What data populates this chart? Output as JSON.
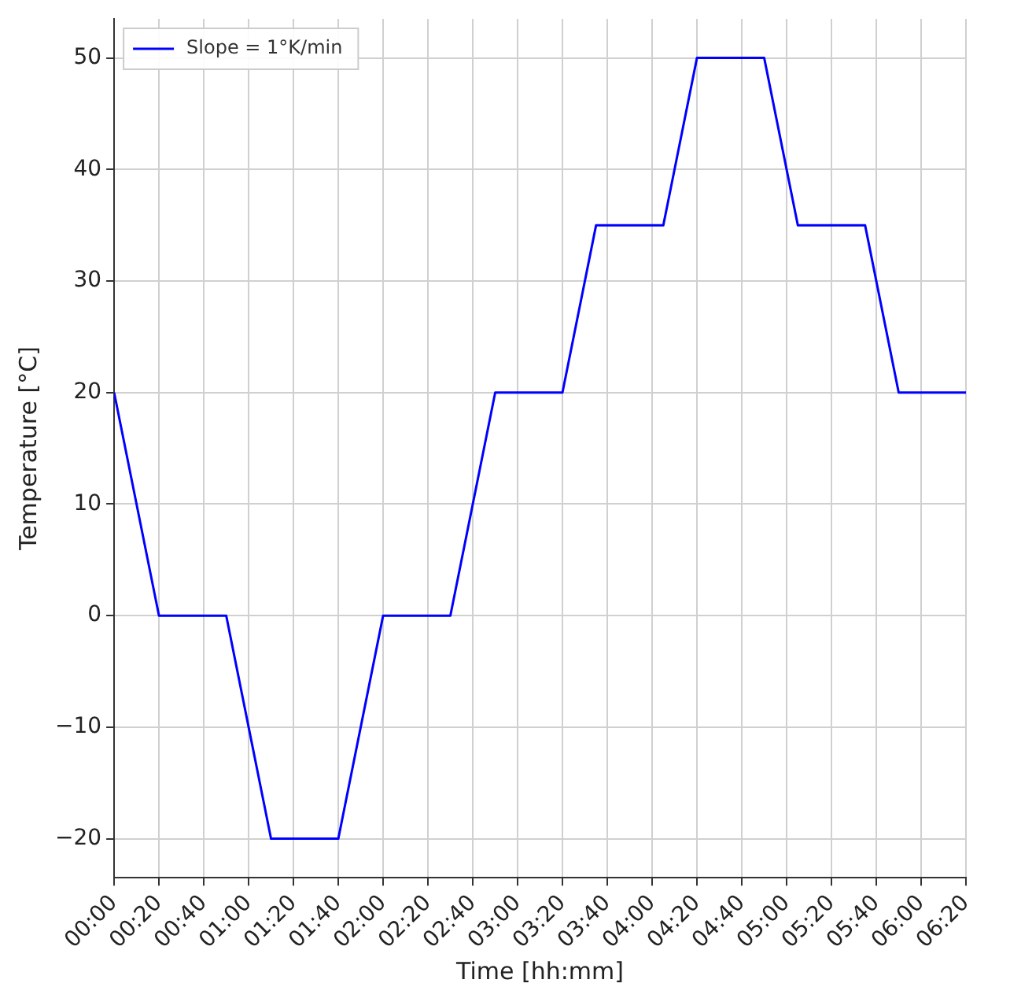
{
  "chart_data": {
    "type": "line",
    "xlabel": "Time [hh:mm]",
    "ylabel": "Temperature [°C]",
    "x": [
      0,
      20,
      50,
      70,
      100,
      120,
      150,
      170,
      200,
      215,
      245,
      260,
      290,
      305,
      335,
      350,
      380
    ],
    "series": [
      {
        "name": "Slope = 1°K/min",
        "color": "#0000ff",
        "values": [
          20,
          0,
          0,
          -20,
          -20,
          0,
          0,
          20,
          20,
          35,
          35,
          50,
          50,
          35,
          35,
          20,
          20
        ]
      }
    ],
    "xlim": [
      0,
      380
    ],
    "xticks": [
      {
        "value": 0,
        "label": "00:00"
      },
      {
        "value": 20,
        "label": "00:20"
      },
      {
        "value": 40,
        "label": "00:40"
      },
      {
        "value": 60,
        "label": "01:00"
      },
      {
        "value": 80,
        "label": "01:20"
      },
      {
        "value": 100,
        "label": "01:40"
      },
      {
        "value": 120,
        "label": "02:00"
      },
      {
        "value": 140,
        "label": "02:20"
      },
      {
        "value": 160,
        "label": "02:40"
      },
      {
        "value": 180,
        "label": "03:00"
      },
      {
        "value": 200,
        "label": "03:20"
      },
      {
        "value": 220,
        "label": "03:40"
      },
      {
        "value": 240,
        "label": "04:00"
      },
      {
        "value": 260,
        "label": "04:20"
      },
      {
        "value": 280,
        "label": "04:40"
      },
      {
        "value": 300,
        "label": "05:00"
      },
      {
        "value": 320,
        "label": "05:20"
      },
      {
        "value": 340,
        "label": "05:40"
      },
      {
        "value": 360,
        "label": "06:00"
      },
      {
        "value": 380,
        "label": "06:20"
      }
    ],
    "ylim": [
      -23.5,
      53.5
    ],
    "yticks": [
      {
        "value": -20,
        "label": "−20"
      },
      {
        "value": -10,
        "label": "−10"
      },
      0,
      10,
      20,
      30,
      40,
      50
    ],
    "grid": true,
    "legend": "top left",
    "marker": "none",
    "line_style": "solid"
  }
}
